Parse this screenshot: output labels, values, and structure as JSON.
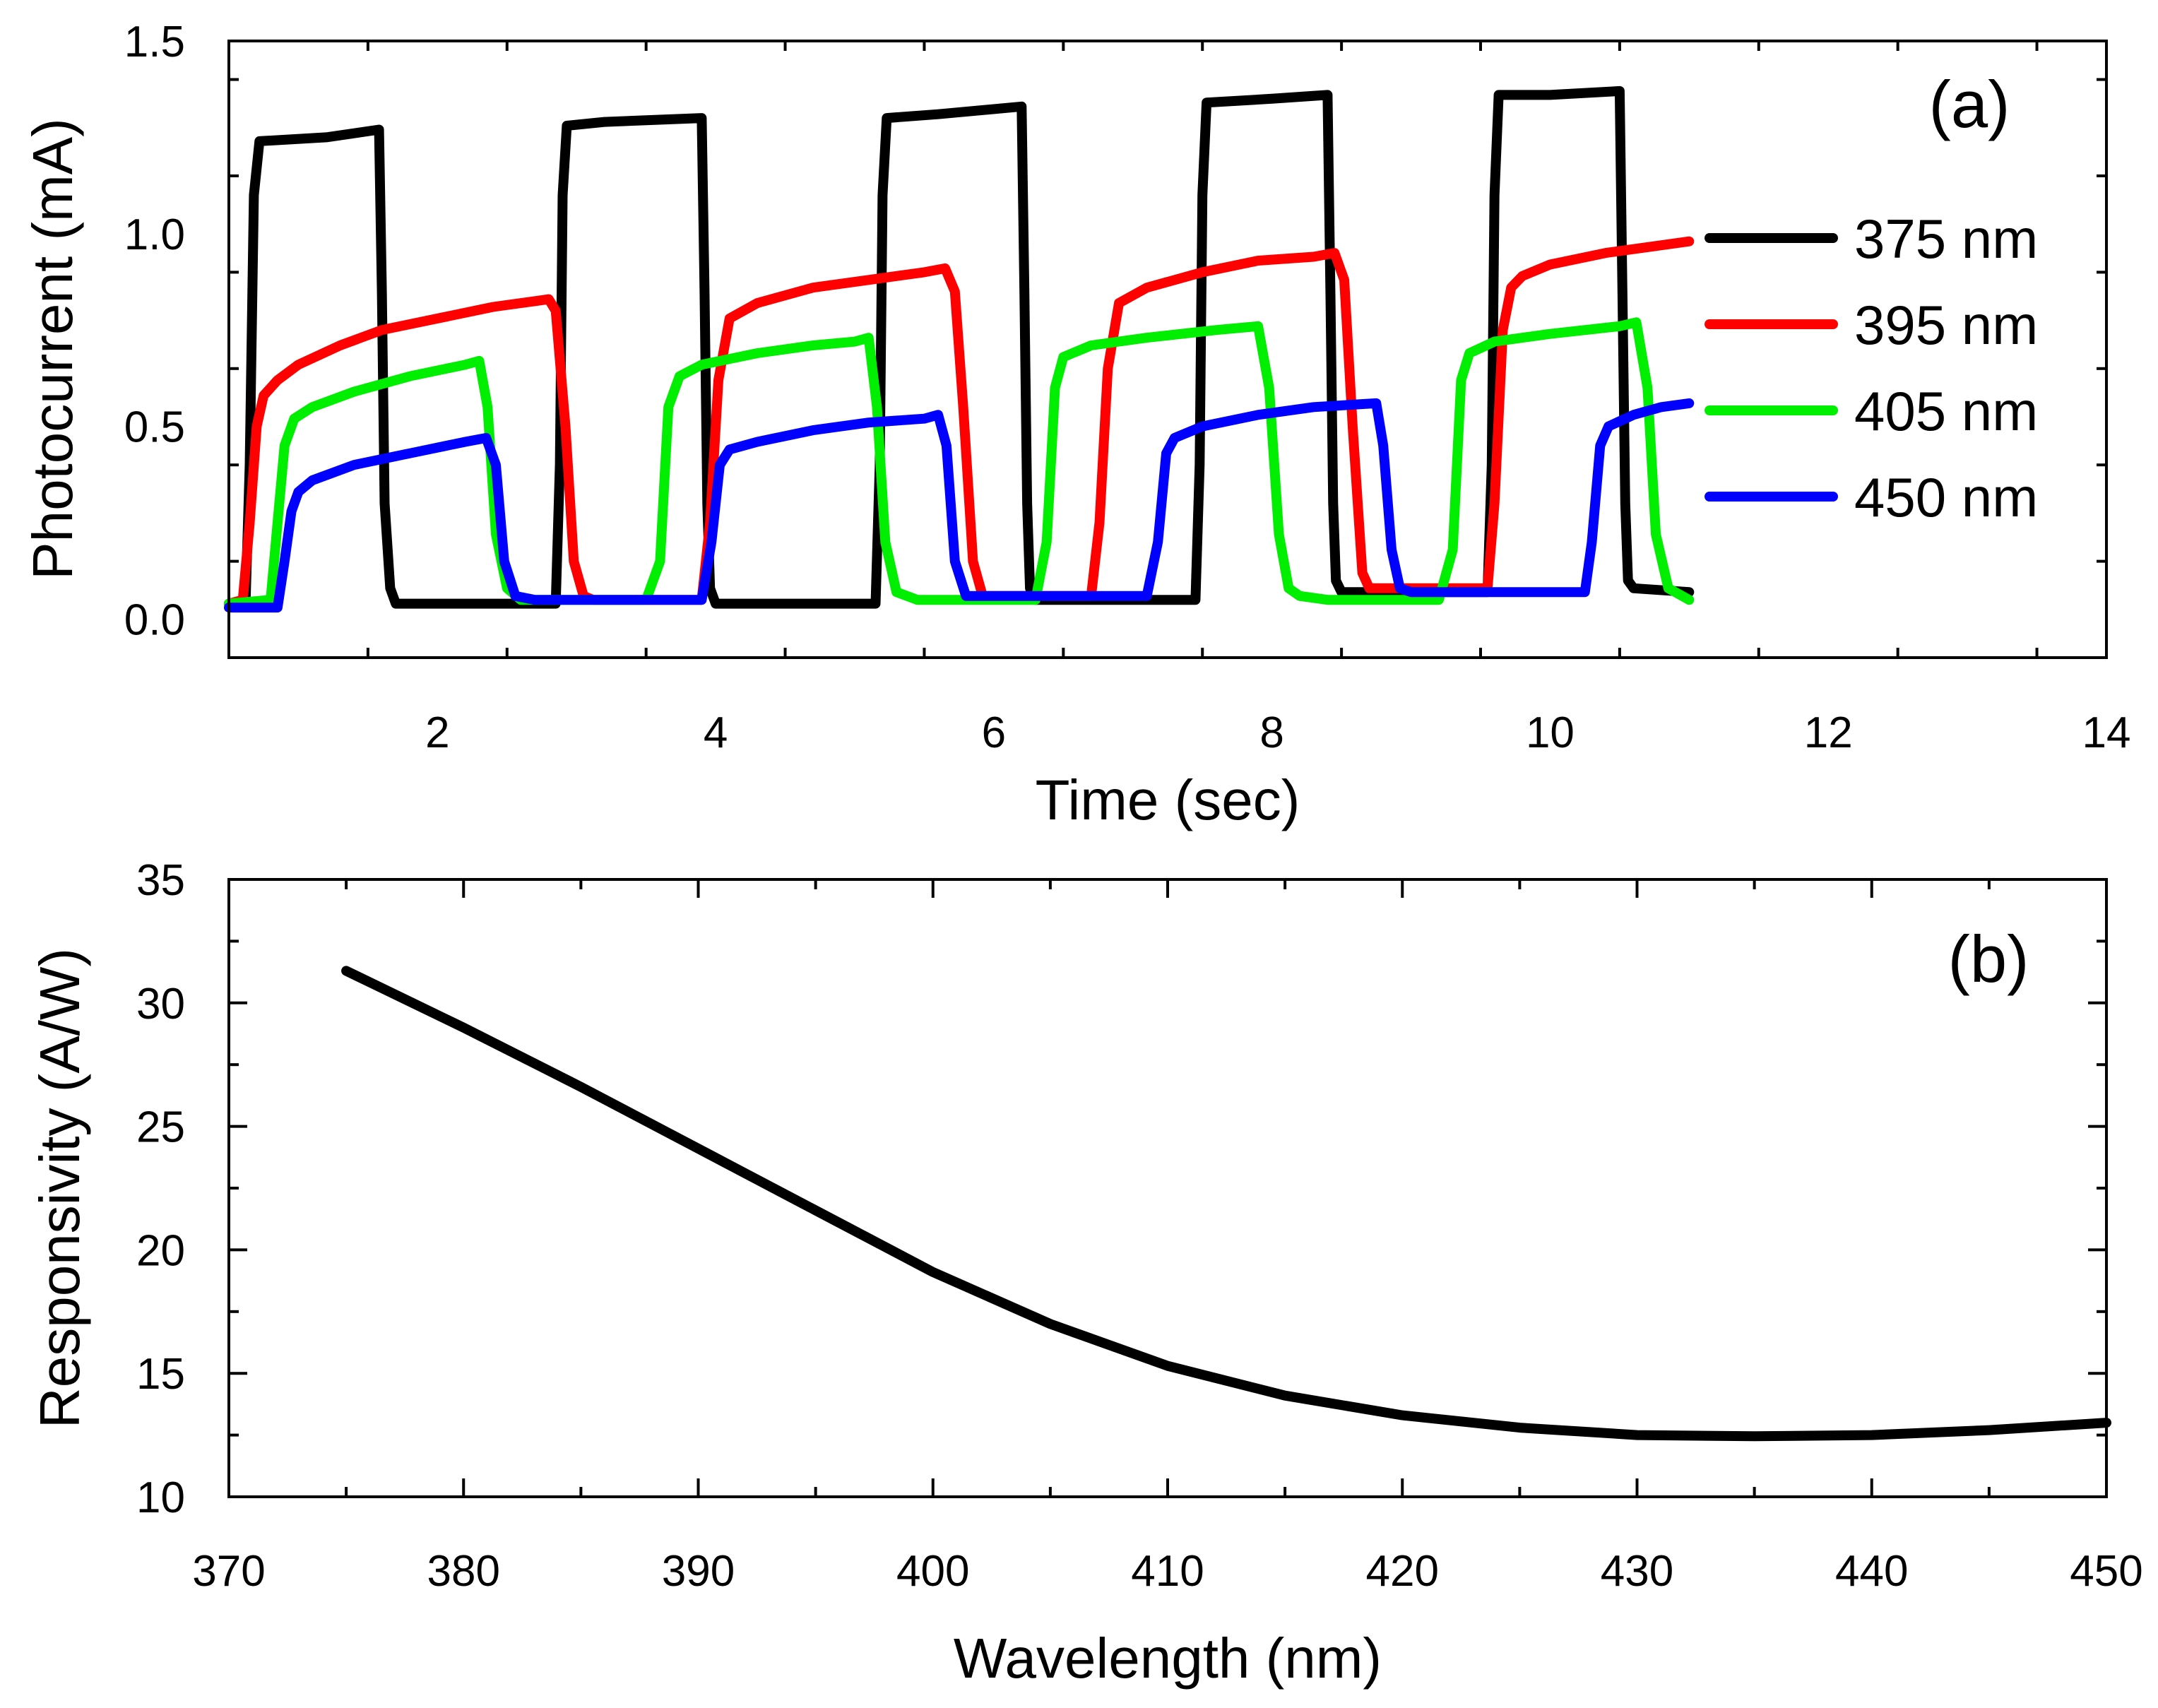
{
  "chart_data": [
    {
      "panel": "(a)",
      "type": "line",
      "xlabel": "Time (sec)",
      "ylabel": "Photocurrent (mA)",
      "xlim": [
        0.5,
        14
      ],
      "ylim": [
        -0.1,
        1.5
      ],
      "xticks": [
        2,
        4,
        6,
        8,
        10,
        12,
        14
      ],
      "xtick_labels": [
        "2",
        "4",
        "6",
        "8",
        "10",
        "12",
        "14"
      ],
      "yticks": [
        0.0,
        0.5,
        1.0,
        1.5
      ],
      "ytick_labels": [
        "0.0",
        "0.5",
        "1.0",
        "1.5"
      ],
      "legend_position": "right",
      "series": [
        {
          "name": "375 nm",
          "color": "#000000",
          "x": [
            0.5,
            0.62,
            0.65,
            0.68,
            0.72,
            1.2,
            1.58,
            1.6,
            1.62,
            1.66,
            1.7,
            2.85,
            2.88,
            2.9,
            2.93,
            3.2,
            3.9,
            3.92,
            3.94,
            3.96,
            4.0,
            5.15,
            5.18,
            5.2,
            5.23,
            5.6,
            6.2,
            6.22,
            6.24,
            6.26,
            6.3,
            7.45,
            7.48,
            7.5,
            7.53,
            8.0,
            8.4,
            8.42,
            8.44,
            8.46,
            8.5,
            9.55,
            9.58,
            9.6,
            9.63,
            10.0,
            10.5,
            10.52,
            10.54,
            10.56,
            10.6,
            11.0
          ],
          "y": [
            0.04,
            0.04,
            0.4,
            1.1,
            1.24,
            1.25,
            1.27,
            0.85,
            0.3,
            0.08,
            0.04,
            0.04,
            0.4,
            1.1,
            1.28,
            1.29,
            1.3,
            0.85,
            0.3,
            0.08,
            0.04,
            0.04,
            0.4,
            1.1,
            1.3,
            1.31,
            1.33,
            0.85,
            0.3,
            0.08,
            0.05,
            0.05,
            0.4,
            1.1,
            1.34,
            1.35,
            1.36,
            0.85,
            0.3,
            0.1,
            0.07,
            0.07,
            0.4,
            1.1,
            1.36,
            1.36,
            1.37,
            0.85,
            0.3,
            0.1,
            0.08,
            0.07
          ]
        },
        {
          "name": "395 nm",
          "color": "#ff0000",
          "x": [
            0.5,
            0.6,
            0.65,
            0.7,
            0.75,
            0.85,
            1.0,
            1.3,
            1.6,
            2.0,
            2.4,
            2.8,
            2.85,
            2.92,
            2.98,
            3.05,
            3.12,
            3.9,
            3.96,
            4.02,
            4.1,
            4.3,
            4.7,
            5.1,
            5.5,
            5.65,
            5.72,
            5.78,
            5.85,
            5.92,
            6.7,
            6.76,
            6.82,
            6.9,
            7.1,
            7.5,
            7.9,
            8.3,
            8.45,
            8.52,
            8.58,
            8.65,
            8.7,
            9.55,
            9.6,
            9.66,
            9.72,
            9.8,
            10.0,
            10.4,
            10.8,
            11.0
          ],
          "y": [
            0.04,
            0.05,
            0.25,
            0.5,
            0.58,
            0.62,
            0.66,
            0.71,
            0.75,
            0.78,
            0.81,
            0.83,
            0.8,
            0.5,
            0.15,
            0.06,
            0.05,
            0.05,
            0.25,
            0.62,
            0.78,
            0.82,
            0.86,
            0.88,
            0.9,
            0.91,
            0.85,
            0.55,
            0.15,
            0.06,
            0.06,
            0.25,
            0.65,
            0.82,
            0.86,
            0.9,
            0.93,
            0.94,
            0.95,
            0.88,
            0.5,
            0.12,
            0.08,
            0.08,
            0.3,
            0.75,
            0.86,
            0.89,
            0.92,
            0.95,
            0.97,
            0.98
          ]
        },
        {
          "name": "405 nm",
          "color": "#00ee00",
          "x": [
            0.5,
            0.8,
            0.85,
            0.9,
            0.97,
            1.1,
            1.4,
            1.8,
            2.2,
            2.3,
            2.36,
            2.42,
            2.5,
            2.6,
            3.5,
            3.6,
            3.66,
            3.74,
            3.9,
            4.3,
            4.7,
            5.0,
            5.1,
            5.16,
            5.22,
            5.3,
            5.45,
            6.3,
            6.38,
            6.44,
            6.5,
            6.7,
            7.1,
            7.6,
            7.9,
            7.98,
            8.05,
            8.12,
            8.2,
            8.4,
            9.2,
            9.3,
            9.36,
            9.42,
            9.6,
            10.0,
            10.5,
            10.62,
            10.7,
            10.76,
            10.85,
            11.0
          ],
          "y": [
            0.04,
            0.05,
            0.25,
            0.45,
            0.52,
            0.55,
            0.59,
            0.63,
            0.66,
            0.67,
            0.55,
            0.22,
            0.08,
            0.05,
            0.05,
            0.15,
            0.55,
            0.63,
            0.66,
            0.69,
            0.71,
            0.72,
            0.73,
            0.55,
            0.2,
            0.07,
            0.05,
            0.05,
            0.2,
            0.6,
            0.68,
            0.71,
            0.73,
            0.75,
            0.76,
            0.6,
            0.22,
            0.08,
            0.06,
            0.05,
            0.05,
            0.18,
            0.62,
            0.69,
            0.72,
            0.74,
            0.76,
            0.77,
            0.6,
            0.22,
            0.08,
            0.05
          ]
        },
        {
          "name": "450 nm",
          "color": "#0000ff",
          "x": [
            0.5,
            0.85,
            0.9,
            0.95,
            1.0,
            1.1,
            1.4,
            1.8,
            2.2,
            2.35,
            2.42,
            2.48,
            2.56,
            2.7,
            3.9,
            3.97,
            4.03,
            4.1,
            4.3,
            4.7,
            5.1,
            5.5,
            5.6,
            5.66,
            5.72,
            5.8,
            6.1,
            7.1,
            7.18,
            7.24,
            7.3,
            7.5,
            7.9,
            8.3,
            8.75,
            8.8,
            8.86,
            8.92,
            9.0,
            9.5,
            10.1,
            10.25,
            10.3,
            10.36,
            10.42,
            10.6,
            10.8,
            11.0
          ],
          "y": [
            0.03,
            0.03,
            0.15,
            0.28,
            0.33,
            0.36,
            0.4,
            0.43,
            0.46,
            0.47,
            0.4,
            0.15,
            0.06,
            0.05,
            0.05,
            0.2,
            0.4,
            0.44,
            0.46,
            0.49,
            0.51,
            0.52,
            0.53,
            0.45,
            0.15,
            0.06,
            0.06,
            0.06,
            0.2,
            0.43,
            0.47,
            0.5,
            0.53,
            0.55,
            0.56,
            0.45,
            0.18,
            0.08,
            0.07,
            0.07,
            0.07,
            0.07,
            0.2,
            0.45,
            0.5,
            0.53,
            0.55,
            0.56
          ]
        }
      ]
    },
    {
      "panel": "(b)",
      "type": "line",
      "xlabel": "Wavelength (nm)",
      "ylabel": "Responsivity (A/W)",
      "xlim": [
        370,
        450
      ],
      "ylim": [
        10,
        35
      ],
      "xticks": [
        370,
        380,
        390,
        400,
        410,
        420,
        430,
        440,
        450
      ],
      "xtick_labels": [
        "370",
        "380",
        "390",
        "400",
        "410",
        "420",
        "430",
        "440",
        "450"
      ],
      "yticks": [
        10,
        15,
        20,
        25,
        30,
        35
      ],
      "ytick_labels": [
        "10",
        "15",
        "20",
        "25",
        "30",
        "35"
      ],
      "series": [
        {
          "name": "Responsivity",
          "color": "#000000",
          "x": [
            375,
            380,
            385,
            390,
            395,
            400,
            405,
            410,
            415,
            420,
            425,
            430,
            435,
            440,
            445,
            450
          ],
          "y": [
            31.3,
            29.0,
            26.6,
            24.1,
            21.6,
            19.1,
            17.0,
            15.3,
            14.1,
            13.3,
            12.8,
            12.5,
            12.45,
            12.5,
            12.7,
            13.0
          ]
        }
      ]
    }
  ]
}
